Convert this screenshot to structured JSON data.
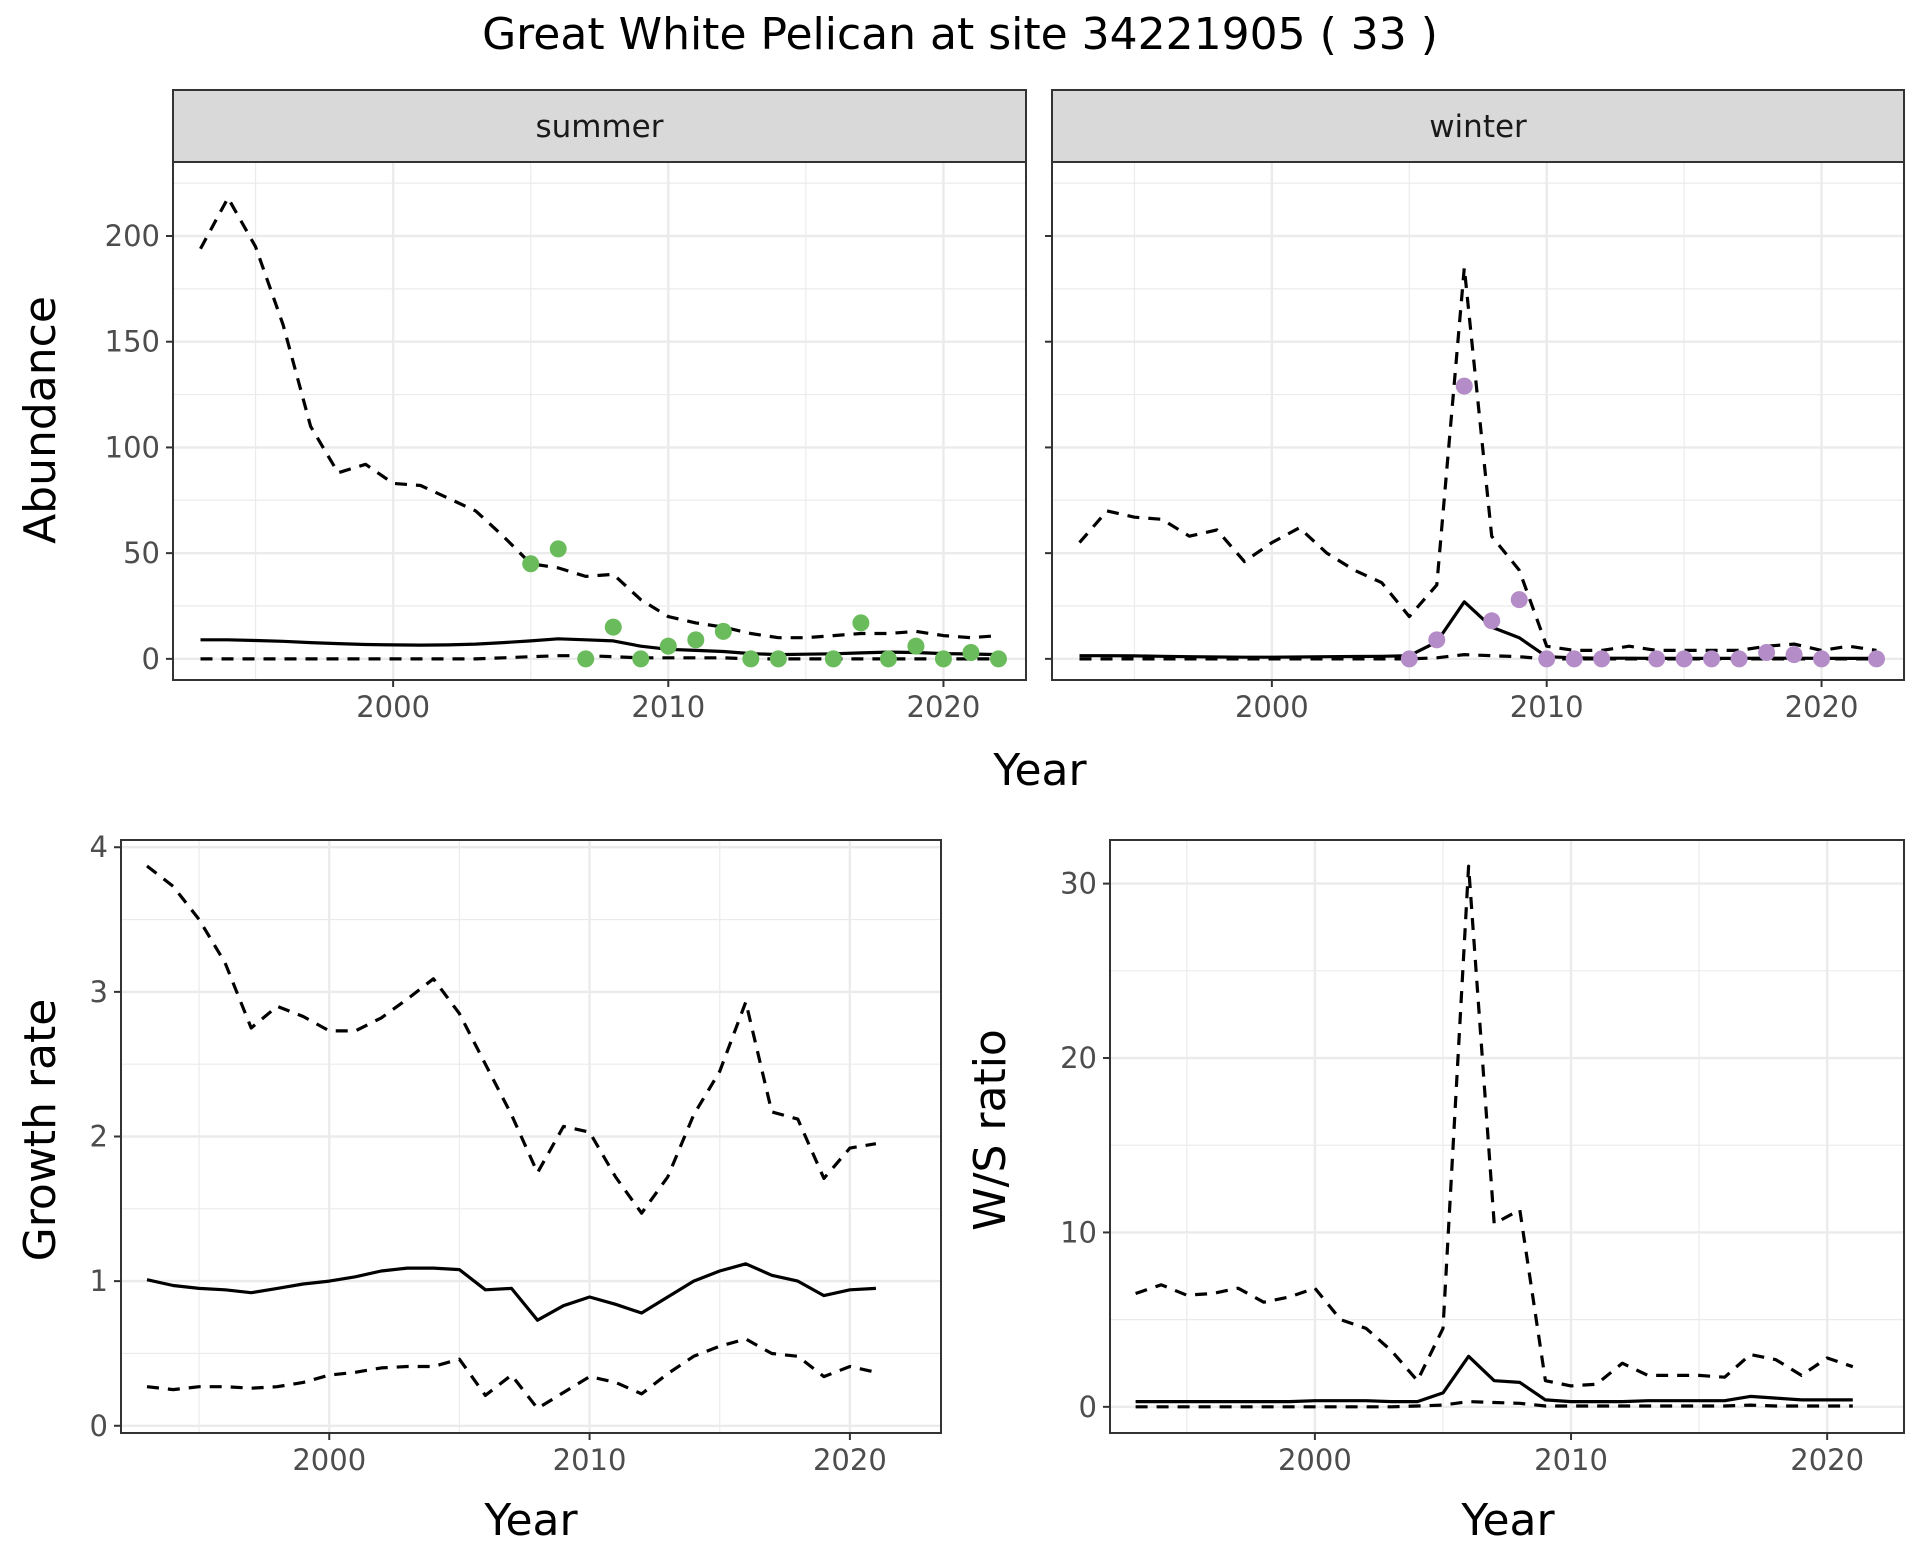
{
  "title": "Great White Pelican at site 34221905 ( 33 )",
  "colors": {
    "summer_points": "#6ABB5B",
    "winter_points": "#B48CC8",
    "lines": "#000000",
    "grid": "#EBEBEB",
    "strip_background": "#D9D9D9"
  },
  "chart_data": [
    {
      "type": "line",
      "facet": "summer",
      "xlabel": "Year",
      "ylabel": "Abundance",
      "xlim": [
        1992,
        2023
      ],
      "ylim": [
        -10,
        235
      ],
      "x_ticks": [
        2000,
        2010,
        2020
      ],
      "y_ticks": [
        0,
        50,
        100,
        150,
        200
      ],
      "grid": true,
      "x": [
        1993,
        1994,
        1995,
        1996,
        1997,
        1998,
        1999,
        2000,
        2001,
        2002,
        2003,
        2004,
        2005,
        2006,
        2007,
        2008,
        2009,
        2010,
        2011,
        2012,
        2013,
        2014,
        2015,
        2016,
        2017,
        2018,
        2019,
        2020,
        2021,
        2022
      ],
      "series": [
        {
          "style": "solid",
          "values": [
            9,
            9,
            8.7,
            8.3,
            7.7,
            7.2,
            6.8,
            6.6,
            6.5,
            6.6,
            7,
            7.7,
            8.5,
            9.5,
            9,
            8.5,
            6,
            4.5,
            4,
            3.5,
            2.5,
            2,
            2.2,
            2.4,
            2.8,
            3.2,
            3,
            2.5,
            2.3,
            2
          ]
        },
        {
          "style": "dashed",
          "values": [
            194,
            218,
            195,
            158,
            110,
            88,
            92,
            83,
            82,
            76,
            70,
            58,
            45,
            43,
            39,
            40,
            28,
            20,
            17,
            15,
            12,
            10,
            10,
            11,
            12,
            12,
            13,
            11,
            10,
            11
          ]
        },
        {
          "style": "dashed",
          "values": [
            0,
            0,
            0,
            0,
            0,
            0,
            0,
            0,
            0,
            0,
            0,
            0.5,
            1,
            1.5,
            1.5,
            1,
            0.5,
            0.5,
            0.5,
            0.5,
            0,
            0,
            0,
            0,
            0,
            0,
            0,
            0,
            0,
            0
          ]
        }
      ],
      "points": {
        "x": [
          2005,
          2006,
          2007,
          2008,
          2009,
          2010,
          2011,
          2012,
          2013,
          2014,
          2016,
          2017,
          2018,
          2019,
          2020,
          2021,
          2022
        ],
        "y": [
          45,
          52,
          0,
          15,
          0,
          6,
          9,
          13,
          0,
          0,
          0,
          17,
          0,
          6,
          0,
          3,
          0
        ]
      }
    },
    {
      "type": "line",
      "facet": "winter",
      "xlabel": "Year",
      "ylabel": "Abundance",
      "xlim": [
        1992,
        2023
      ],
      "ylim": [
        -10,
        235
      ],
      "x_ticks": [
        2000,
        2010,
        2020
      ],
      "y_ticks": [
        0,
        50,
        100,
        150,
        200
      ],
      "grid": true,
      "x": [
        1993,
        1994,
        1995,
        1996,
        1997,
        1998,
        1999,
        2000,
        2001,
        2002,
        2003,
        2004,
        2005,
        2006,
        2007,
        2008,
        2009,
        2010,
        2011,
        2012,
        2013,
        2014,
        2015,
        2016,
        2017,
        2018,
        2019,
        2020,
        2021,
        2022
      ],
      "series": [
        {
          "style": "solid",
          "values": [
            1.5,
            1.5,
            1.4,
            1.2,
            1,
            0.9,
            0.8,
            0.8,
            0.9,
            1,
            1.1,
            1.2,
            1.5,
            8,
            27,
            15,
            10,
            1,
            0.5,
            0.3,
            0.3,
            0.2,
            0.2,
            0.2,
            0.2,
            0.3,
            0.3,
            0.2,
            0.2,
            0.2
          ]
        },
        {
          "style": "dashed",
          "values": [
            55,
            70,
            67,
            66,
            58,
            61,
            46,
            55,
            62,
            50,
            42,
            36,
            20,
            35,
            185,
            58,
            42,
            6,
            4,
            4,
            6,
            4,
            4,
            4,
            4,
            6,
            7,
            4,
            6,
            4
          ]
        },
        {
          "style": "dashed",
          "values": [
            0,
            0,
            0,
            0,
            0,
            0,
            0,
            0,
            0,
            0,
            0,
            0,
            0,
            0.5,
            2,
            1.5,
            1,
            0,
            0,
            0,
            0,
            0,
            0,
            0,
            0,
            0,
            0,
            0,
            0,
            0
          ]
        }
      ],
      "points": {
        "x": [
          2005,
          2006,
          2007,
          2008,
          2009,
          2010,
          2011,
          2012,
          2014,
          2015,
          2016,
          2017,
          2018,
          2019,
          2020,
          2022
        ],
        "y": [
          0,
          9,
          129,
          18,
          28,
          0,
          0,
          0,
          0,
          0,
          0,
          0,
          3,
          2,
          0,
          0
        ]
      }
    },
    {
      "type": "line",
      "xlabel": "Year",
      "ylabel": "Growth rate",
      "xlim": [
        1992,
        2023.5
      ],
      "ylim": [
        -0.05,
        4.05
      ],
      "x_ticks": [
        2000,
        2010,
        2020
      ],
      "y_ticks": [
        0,
        1,
        2,
        3,
        4
      ],
      "grid": true,
      "x": [
        1993,
        1994,
        1995,
        1996,
        1997,
        1998,
        1999,
        2000,
        2001,
        2002,
        2003,
        2004,
        2005,
        2006,
        2007,
        2008,
        2009,
        2010,
        2011,
        2012,
        2013,
        2014,
        2015,
        2016,
        2017,
        2018,
        2019,
        2020,
        2021
      ],
      "series": [
        {
          "style": "solid",
          "values": [
            1.01,
            0.97,
            0.95,
            0.94,
            0.92,
            0.95,
            0.98,
            1.0,
            1.03,
            1.07,
            1.09,
            1.09,
            1.08,
            0.94,
            0.95,
            0.73,
            0.83,
            0.89,
            0.84,
            0.78,
            0.89,
            1.0,
            1.07,
            1.12,
            1.04,
            1.0,
            0.9,
            0.94,
            0.95
          ]
        },
        {
          "style": "dashed",
          "values": [
            3.87,
            3.73,
            3.5,
            3.2,
            2.75,
            2.9,
            2.83,
            2.73,
            2.73,
            2.82,
            2.95,
            3.09,
            2.85,
            2.5,
            2.15,
            1.75,
            2.07,
            2.03,
            1.72,
            1.47,
            1.72,
            2.15,
            2.45,
            2.93,
            2.17,
            2.12,
            1.71,
            1.92,
            1.95
          ]
        },
        {
          "style": "dashed",
          "values": [
            0.27,
            0.25,
            0.27,
            0.27,
            0.26,
            0.27,
            0.3,
            0.35,
            0.37,
            0.4,
            0.41,
            0.41,
            0.46,
            0.21,
            0.35,
            0.12,
            0.23,
            0.34,
            0.3,
            0.22,
            0.36,
            0.48,
            0.55,
            0.6,
            0.5,
            0.48,
            0.34,
            0.41,
            0.37
          ]
        }
      ]
    },
    {
      "type": "line",
      "xlabel": "Year",
      "ylabel": "W/S ratio",
      "xlim": [
        1992,
        2023
      ],
      "ylim": [
        -1.5,
        32.5
      ],
      "x_ticks": [
        2000,
        2010,
        2020
      ],
      "y_ticks": [
        0,
        10,
        20,
        30
      ],
      "grid": true,
      "x": [
        1993,
        1994,
        1995,
        1996,
        1997,
        1998,
        1999,
        2000,
        2001,
        2002,
        2003,
        2004,
        2005,
        2006,
        2007,
        2008,
        2009,
        2010,
        2011,
        2012,
        2013,
        2014,
        2015,
        2016,
        2017,
        2018,
        2019,
        2020,
        2021
      ],
      "series": [
        {
          "style": "solid",
          "values": [
            0.3,
            0.3,
            0.3,
            0.3,
            0.3,
            0.3,
            0.3,
            0.35,
            0.35,
            0.35,
            0.3,
            0.3,
            0.8,
            2.9,
            1.5,
            1.4,
            0.4,
            0.3,
            0.3,
            0.3,
            0.35,
            0.35,
            0.35,
            0.35,
            0.6,
            0.5,
            0.4,
            0.4,
            0.4
          ]
        },
        {
          "style": "dashed",
          "values": [
            6.5,
            7,
            6.4,
            6.5,
            6.8,
            6,
            6.3,
            6.8,
            5,
            4.5,
            3.2,
            1.5,
            4.5,
            31,
            10.5,
            11.3,
            1.5,
            1.2,
            1.3,
            2.5,
            1.8,
            1.8,
            1.8,
            1.7,
            3,
            2.7,
            1.8,
            2.8,
            2.3
          ]
        },
        {
          "style": "dashed",
          "values": [
            0,
            0,
            0,
            0,
            0,
            0,
            0,
            0,
            0,
            0,
            0,
            0.05,
            0.1,
            0.3,
            0.25,
            0.2,
            0.05,
            0.05,
            0.05,
            0.05,
            0.05,
            0.05,
            0.05,
            0.05,
            0.1,
            0.05,
            0.05,
            0.05,
            0.05
          ]
        }
      ]
    }
  ]
}
